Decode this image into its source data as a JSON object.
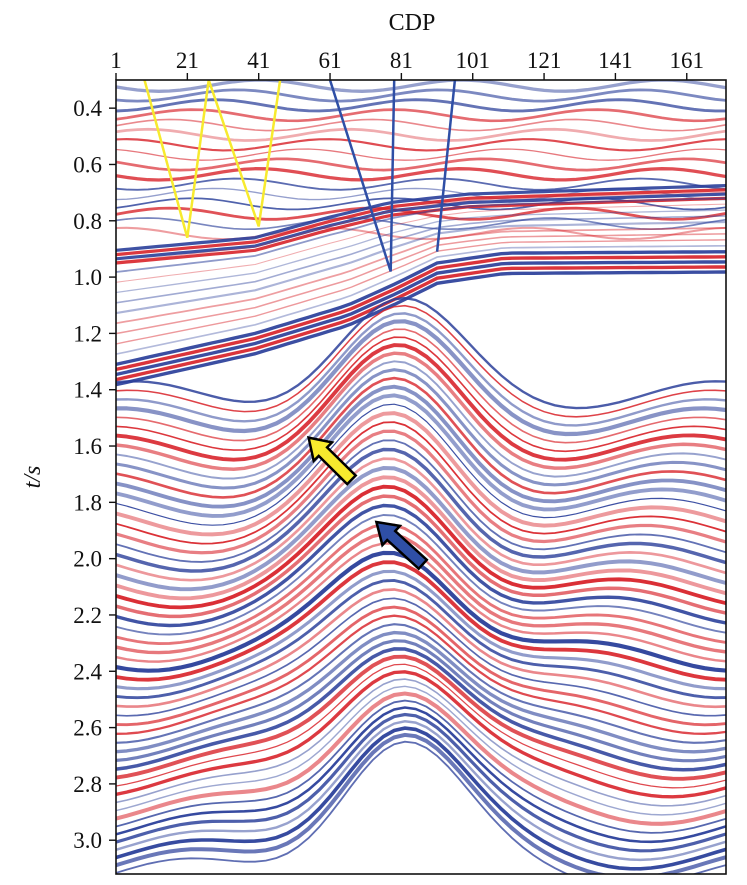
{
  "chart_data": {
    "type": "seismic-section",
    "xlabel": "CDP",
    "ylabel": "t/s",
    "xlim": [
      1,
      172
    ],
    "ylim": [
      0.3,
      3.12
    ],
    "x_ticks": [
      1,
      21,
      41,
      61,
      81,
      101,
      121,
      141,
      161
    ],
    "y_ticks": [
      "0.4",
      "0.6",
      "0.8",
      "1.0",
      "1.2",
      "1.4",
      "1.6",
      "1.8",
      "2.0",
      "2.2",
      "2.4",
      "2.6",
      "2.8",
      "3.0"
    ],
    "colors": {
      "positive_amplitude": "#d8232a",
      "negative_amplitude": "#2a3f9a",
      "background": "#ffffff",
      "yellow_annotation": "#f7ea2e",
      "blue_annotation": "#2f4fa6"
    },
    "annotations": {
      "yellow_lines": [
        [
          [
            9,
            0.3
          ],
          [
            21,
            0.86
          ],
          [
            27,
            0.3
          ],
          [
            41,
            0.82
          ],
          [
            47,
            0.3
          ]
        ]
      ],
      "blue_lines": [
        [
          [
            61,
            0.3
          ],
          [
            78,
            0.98
          ],
          [
            79,
            0.3
          ]
        ],
        [
          [
            91,
            0.91
          ],
          [
            96,
            0.3
          ]
        ]
      ],
      "arrows": [
        {
          "color": "yellow",
          "tip": [
            55,
            1.57
          ],
          "tail": [
            67,
            1.72
          ]
        },
        {
          "color": "blue",
          "tip": [
            74,
            1.87
          ],
          "tail": [
            87,
            2.02
          ]
        }
      ]
    }
  }
}
